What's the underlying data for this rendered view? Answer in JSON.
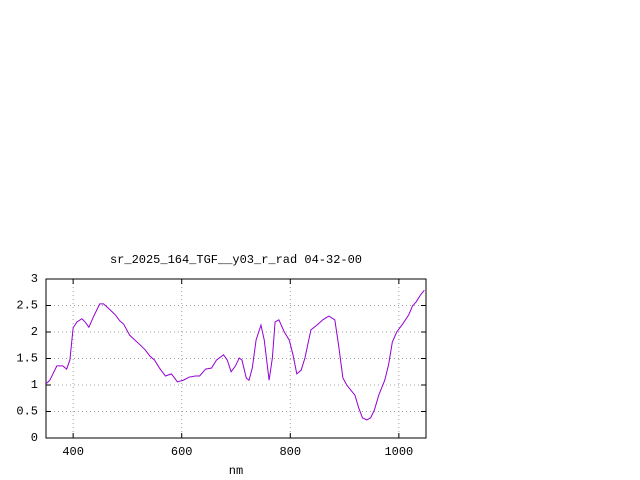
{
  "chart_data": {
    "type": "line",
    "title": "sr_2025_164_TGF__y03_r_rad 04-32-00",
    "x_label": "nm",
    "x": [
      350,
      357,
      370,
      381,
      388,
      394,
      400,
      407,
      416,
      422,
      429,
      438,
      449,
      456,
      467,
      478,
      486,
      493,
      504,
      522,
      533,
      541,
      550,
      559,
      570,
      581,
      592,
      603,
      614,
      625,
      633,
      644,
      655,
      664,
      677,
      684,
      691,
      699,
      706,
      711,
      719,
      724,
      730,
      737,
      746,
      752,
      761,
      767,
      772,
      779,
      789,
      798,
      805,
      812,
      820,
      827,
      838,
      849,
      860,
      871,
      882,
      889,
      897,
      904,
      911,
      919,
      926,
      933,
      941,
      948,
      955,
      963,
      974,
      981,
      988,
      996,
      1007,
      1018,
      1025,
      1032,
      1040,
      1047
    ],
    "values": [
      1.02,
      1.09,
      1.36,
      1.36,
      1.3,
      1.47,
      2.08,
      2.19,
      2.25,
      2.19,
      2.09,
      2.3,
      2.53,
      2.53,
      2.43,
      2.32,
      2.21,
      2.15,
      1.94,
      1.77,
      1.66,
      1.55,
      1.47,
      1.32,
      1.17,
      1.21,
      1.06,
      1.09,
      1.15,
      1.17,
      1.17,
      1.3,
      1.32,
      1.47,
      1.57,
      1.47,
      1.25,
      1.36,
      1.51,
      1.47,
      1.13,
      1.09,
      1.32,
      1.85,
      2.13,
      1.85,
      1.09,
      1.51,
      2.19,
      2.23,
      2.0,
      1.85,
      1.57,
      1.21,
      1.28,
      1.51,
      2.04,
      2.13,
      2.23,
      2.3,
      2.23,
      1.75,
      1.13,
      1.0,
      0.91,
      0.81,
      0.57,
      0.38,
      0.34,
      0.38,
      0.53,
      0.81,
      1.09,
      1.38,
      1.81,
      2.0,
      2.15,
      2.32,
      2.49,
      2.57,
      2.7,
      2.79
    ],
    "color": "#9400d3",
    "xlim": [
      350,
      1050
    ],
    "xticks": [
      400,
      600,
      800,
      1000
    ],
    "ylim": [
      0,
      3
    ],
    "yticks": [
      0,
      0.5,
      1,
      1.5,
      2,
      2.5,
      3
    ],
    "grid": true
  }
}
